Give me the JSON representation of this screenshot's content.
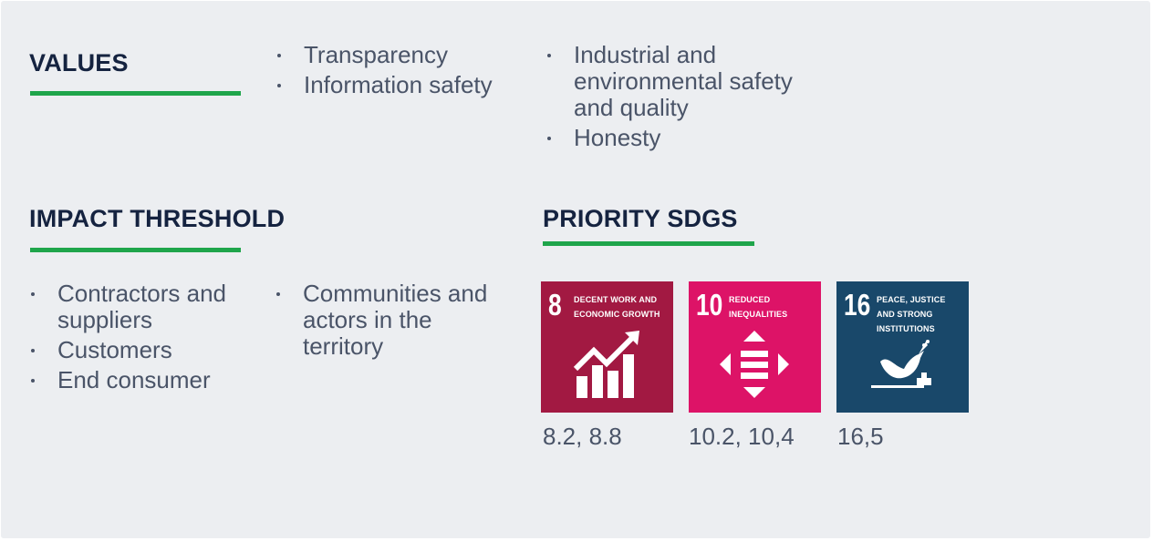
{
  "values": {
    "title": "VALUES",
    "list_left": [
      "Transparency",
      "Information safety"
    ],
    "list_right": [
      "Industrial and environmental safety and quality",
      "Honesty"
    ]
  },
  "impact": {
    "title": "IMPACT THRESHOLD",
    "list_left": [
      "Contractors and suppliers",
      "Customers",
      "End consumer"
    ],
    "list_right": [
      "Communities and actors in the territory"
    ]
  },
  "sdgs": {
    "title": "PRIORITY SDGS",
    "tiles": [
      {
        "number": "8",
        "title": "DECENT WORK AND ECONOMIC GROWTH",
        "color": "#a21942",
        "icon": "growth-chart-icon",
        "targets": "8.2, 8.8"
      },
      {
        "number": "10",
        "title": "REDUCED INEQUALITIES",
        "color": "#dd1367",
        "icon": "equality-arrows-icon",
        "targets": "10.2, 10,4"
      },
      {
        "number": "16",
        "title": "PEACE, JUSTICE AND STRONG INSTITUTIONS",
        "color": "#19486a",
        "icon": "dove-gavel-icon",
        "targets": "16,5"
      }
    ]
  },
  "colors": {
    "background": "#eceef1",
    "heading": "#152340",
    "underline": "#1fa54b",
    "body_text": "#4a5468"
  }
}
